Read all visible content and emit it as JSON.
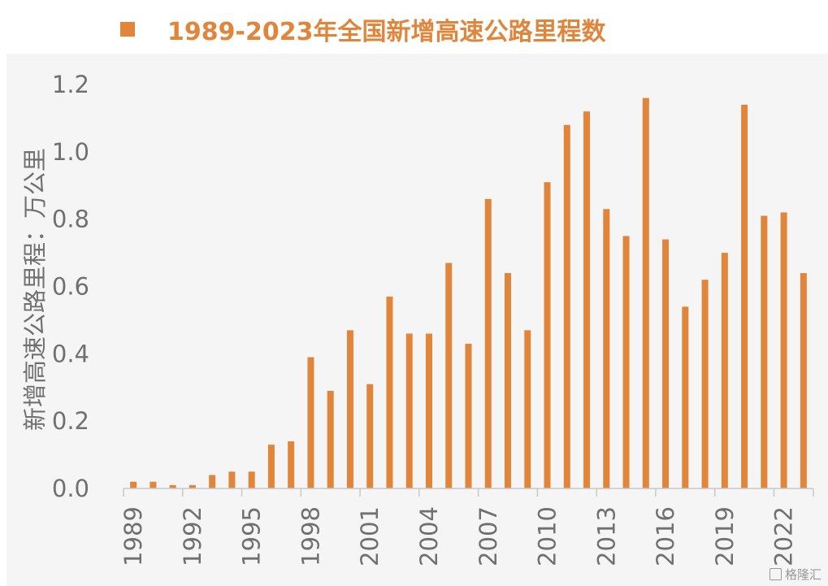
{
  "colors": {
    "bar": "#e0853a",
    "axis": "#c8c8c8",
    "text": "#707070",
    "background": "#f5f5f5"
  },
  "watermark": "格隆汇",
  "chart_data": {
    "type": "bar",
    "title": "1989-2023年全国新增高速公路里程数",
    "legend_position": "top-left",
    "ylabel": "新增高速公路里程：万公里",
    "xlabel": "",
    "ylim": [
      0,
      1.2
    ],
    "y_ticks": [
      "0.0",
      "0.2",
      "0.4",
      "0.6",
      "0.8",
      "1.0",
      "1.2"
    ],
    "grid": false,
    "x_tick_labels": [
      "1989",
      "1992",
      "1995",
      "1998",
      "2001",
      "2004",
      "2007",
      "2010",
      "2013",
      "2016",
      "2019",
      "2022"
    ],
    "categories": [
      "1989",
      "1990",
      "1991",
      "1992",
      "1993",
      "1994",
      "1995",
      "1996",
      "1997",
      "1998",
      "1999",
      "2000",
      "2001",
      "2002",
      "2003",
      "2004",
      "2005",
      "2006",
      "2007",
      "2008",
      "2009",
      "2010",
      "2011",
      "2012",
      "2013",
      "2014",
      "2015",
      "2016",
      "2017",
      "2018",
      "2019",
      "2020",
      "2021",
      "2022",
      "2023"
    ],
    "values": [
      0.02,
      0.02,
      0.01,
      0.01,
      0.04,
      0.05,
      0.05,
      0.13,
      0.14,
      0.39,
      0.29,
      0.47,
      0.31,
      0.57,
      0.46,
      0.46,
      0.67,
      0.43,
      0.86,
      0.64,
      0.47,
      0.91,
      1.08,
      1.12,
      0.83,
      0.75,
      1.16,
      0.74,
      0.54,
      0.62,
      0.7,
      1.14,
      0.81,
      0.82,
      0.64
    ]
  }
}
